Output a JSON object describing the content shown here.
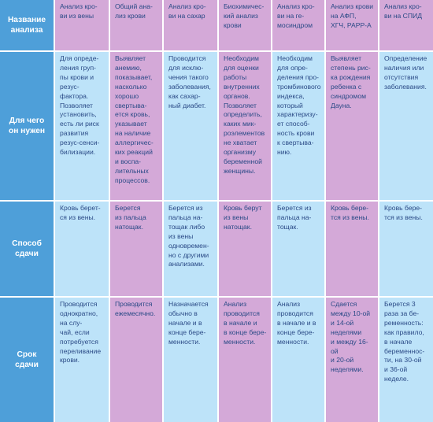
{
  "row_headers": [
    "Название\nанализа",
    "Для чего\nон нужен",
    "Способ\nсдачи",
    "Срок\nсдачи"
  ],
  "columns": [
    {
      "name": "Анализ кро-\nви из вены",
      "purpose": "Для опреде-\nления груп-\nпы крови и\nрезус-\nфактора.\nПозволяет\nустановить,\nесть ли риск\nразвития\nрезус-сенси-\nбилизации.",
      "method": "Кровь берет-\nся из вены.",
      "timing": "Проводится\nоднократно,\nна слу-\nчай, если\nпотребуется\nпереливание\nкрови."
    },
    {
      "name": "Общий ана-\nлиз крови",
      "purpose": "Выявляет\nанемию,\nпоказывает,\nнасколько\nхорошо\nсвертыва-\nется кровь,\nуказывает\nна наличие\nаллергичес-\nких реакций\nи воспа-\nлительных\nпроцессов.",
      "method": "Берется\nиз пальца\nнатощак.",
      "timing": "Проводится\nежемесячно."
    },
    {
      "name": "Анализ кро-\nви на сахар",
      "purpose": "Проводится\nдля исклю-\nчения такого\nзаболевания,\nкак сахар-\nный диабет.",
      "method": "Берется из\nпальца на-\nтощак либо\nиз вены\nодновремен-\nно с другими\nанализами.",
      "timing": "Назначается\nобычно в\nначале и в\nконце бере-\nменности."
    },
    {
      "name": "Биохимичес-\nкий анализ\nкрови",
      "purpose": "Необходим\nдля оценки\nработы\nвнутренних\nорганов.\nПозволяет\nопределить,\nкаких мик-\nроэлементов\nне хватает\nорганизму\nбеременной\nженщины.",
      "method": "Кровь берут\nиз вены\nнатощак.",
      "timing": "Анализ\nпроводится\nв начале и\nв конце бере-\nменности."
    },
    {
      "name": "Анализ кро-\nви на ге-\nмосиндром",
      "purpose": "Необходим\nдля опре-\nделения про-\nтромбинового\nиндекса,\nкоторый\nхарактеризу-\nет способ-\nность крови\nк свертыва-\nнию.",
      "method": "Берется из\nпальца на-\nтощак.",
      "timing": "Анализ\nпроводится\nв начале и в\nконце бере-\nменности."
    },
    {
      "name": "Анализ крови\nна АФП,\nХГЧ, PAPP-A",
      "purpose": "Выявляет\nстепень рис-\nка рождения\nребенка с\nсиндромом\nДауна.",
      "method": "Кровь бере-\nтся из вены.",
      "timing": "Сдается\nмежду 10-ой\nи 14-ой\nнеделями\nи между 16-ой\nи 20-ой\nнеделями."
    },
    {
      "name": "Анализ кро-\nви на СПИД",
      "purpose": "Определение\nналичия или\nотсутствия\nзаболевания.",
      "method": "Кровь бере-\nтся из вены.",
      "timing": "Берется 3\nраза за бе-\nременность:\nкак правило,\nв начале\nбеременнос-\nти, на 30-ой\nи 36-ой\nнеделе."
    }
  ]
}
